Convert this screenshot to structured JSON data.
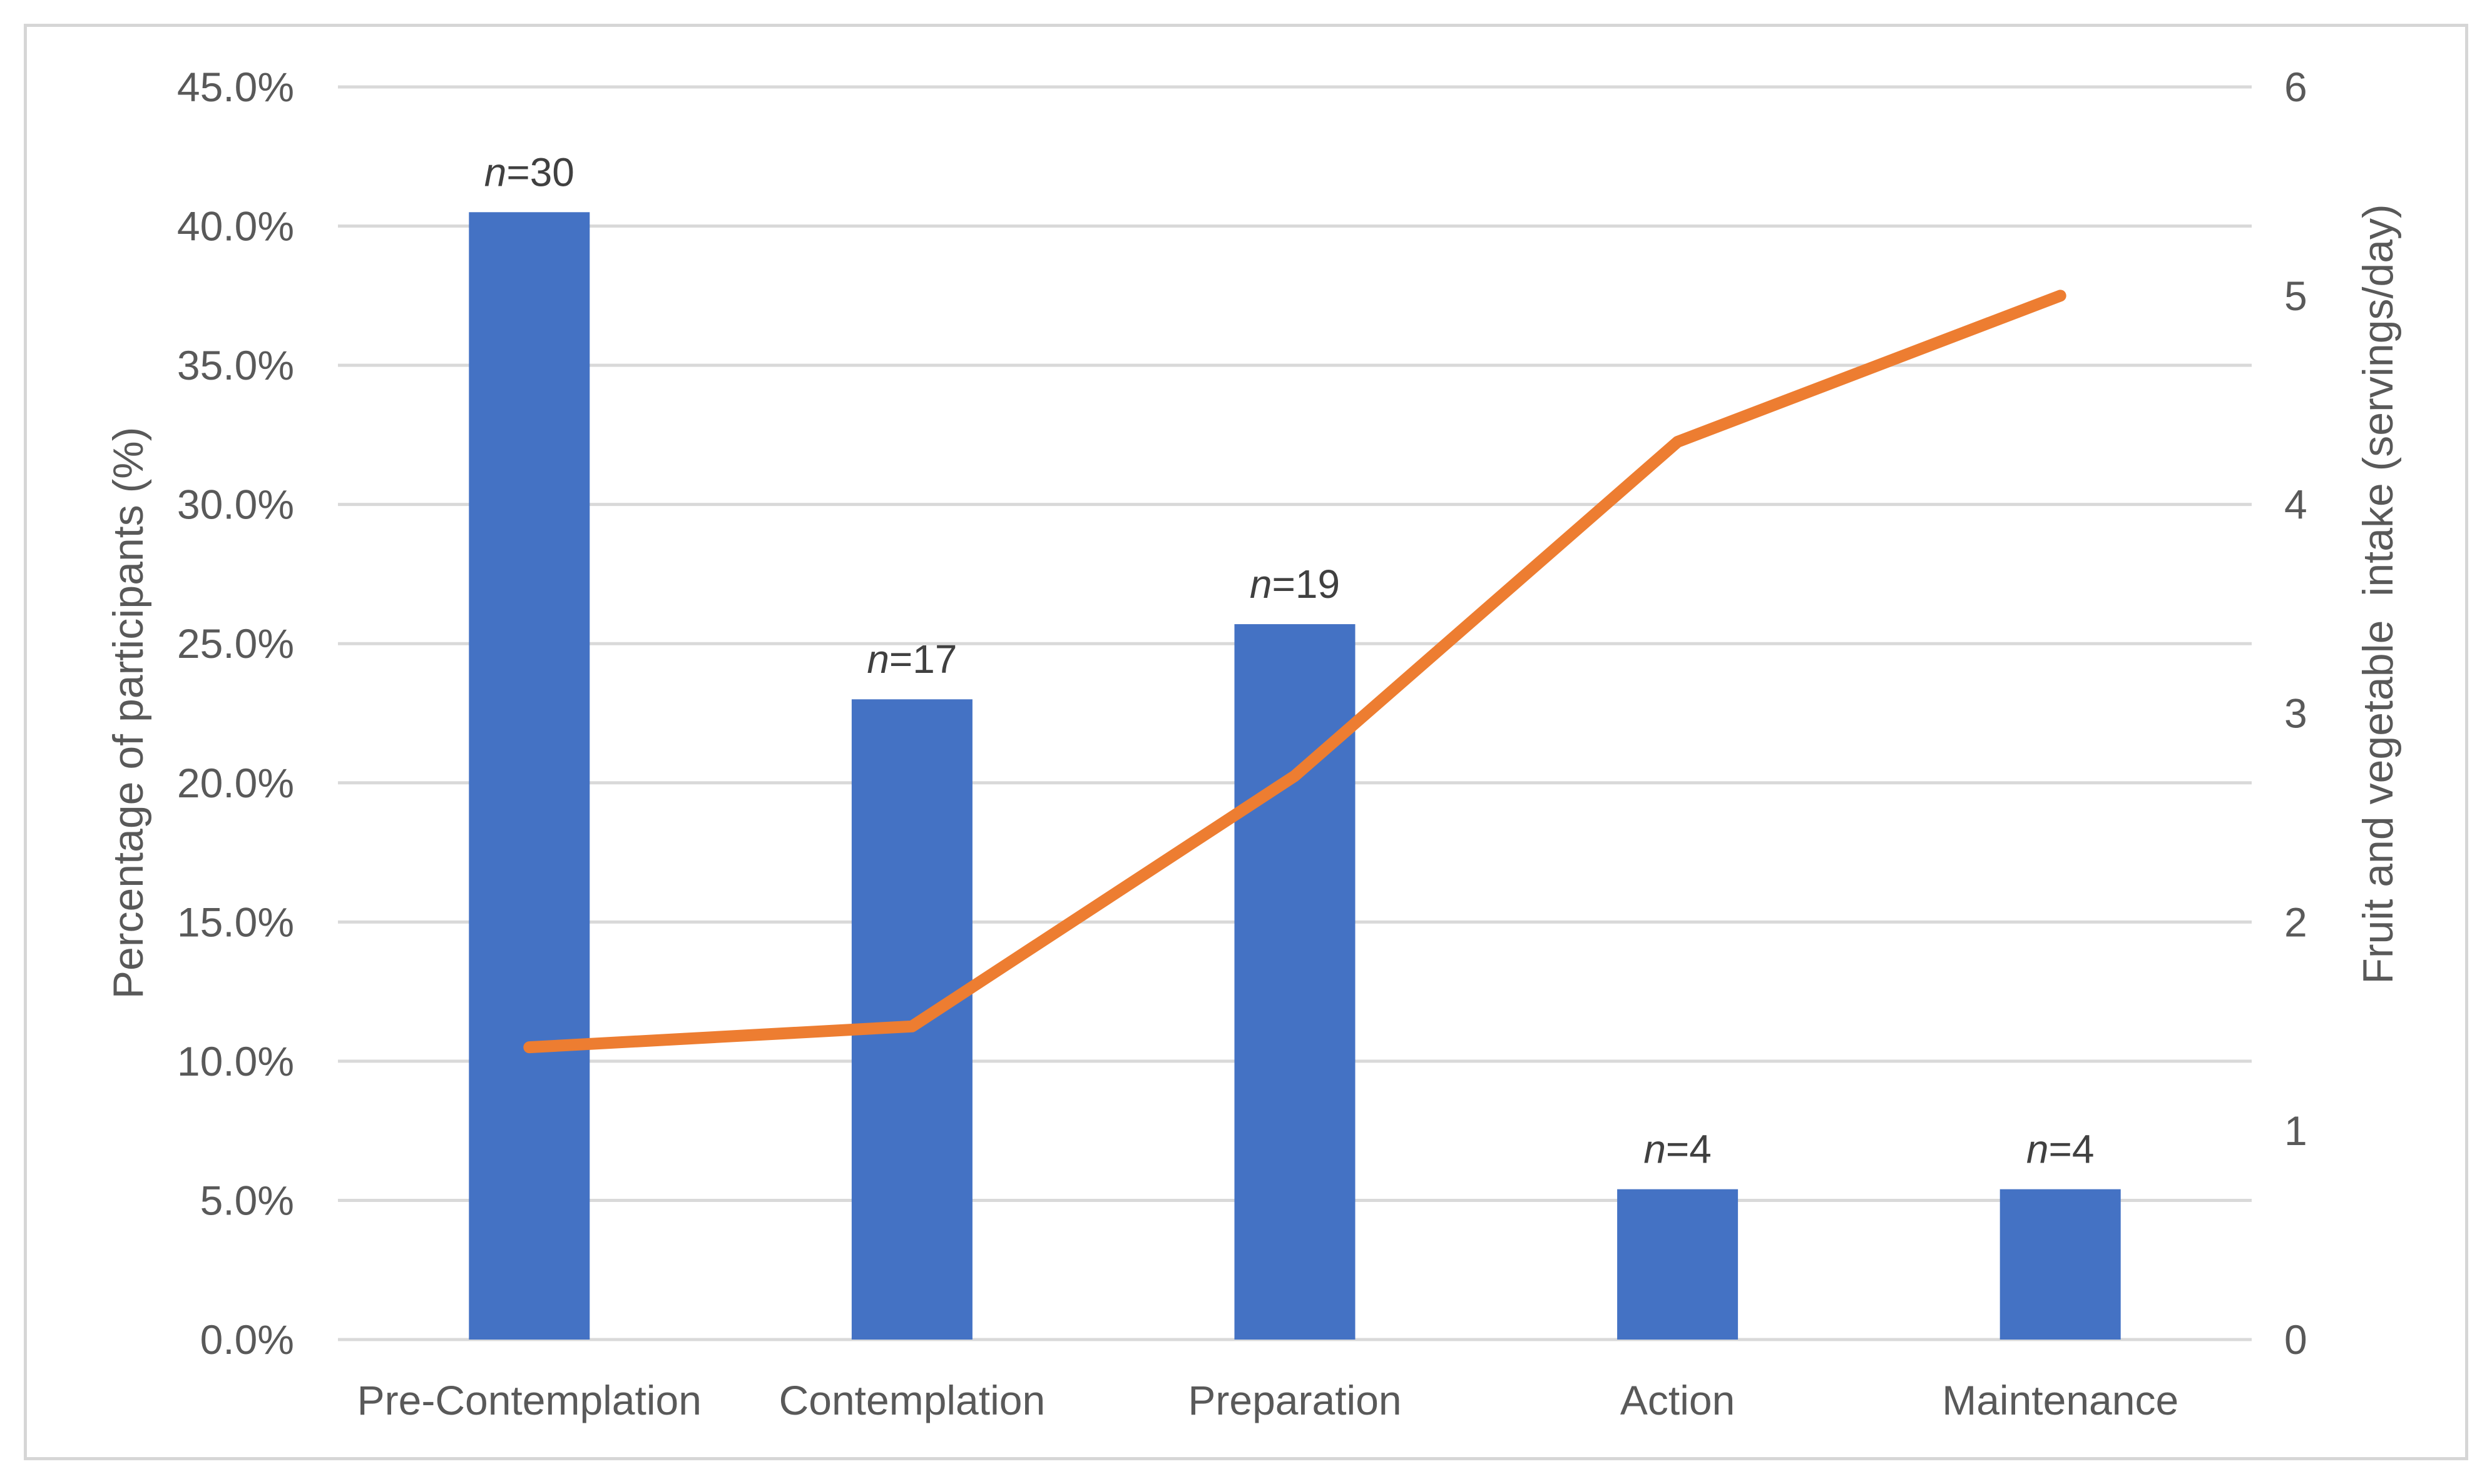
{
  "figure": {
    "background": "#FFFFFF",
    "border_color": "#D6D6D6"
  },
  "chart_data": {
    "type": "bar+line",
    "categories": [
      "Pre-Contemplation",
      "Contemplation",
      "Preparation",
      "Action",
      "Maintenance"
    ],
    "series": [
      {
        "name": "Percentage of participants",
        "type": "bar",
        "axis": "left",
        "color": "#4472C4",
        "values": [
          40.5,
          23.0,
          25.7,
          5.4,
          5.4
        ],
        "point_labels": [
          "n=30",
          "n=17",
          "n=19",
          "n=4",
          "n=4"
        ]
      },
      {
        "name": "Fruit and vegetable intake",
        "type": "line",
        "axis": "right",
        "color": "#ED7D31",
        "values": [
          1.4,
          1.5,
          2.7,
          4.3,
          5.0
        ]
      }
    ],
    "left_axis": {
      "title": "Percentage of participants (%)",
      "min": 0,
      "max": 45,
      "step": 5,
      "tick_decimals": 1,
      "tick_suffix": "%"
    },
    "right_axis": {
      "title": "Fruit and vegetable  intake (servings/day)",
      "min": 0,
      "max": 6,
      "step": 1,
      "tick_decimals": 0,
      "tick_suffix": ""
    },
    "grid": true,
    "legend_position": "none",
    "gridline_color": "#D9D9D9",
    "tick_text_color": "#595959",
    "data_label_color": "#404040"
  }
}
